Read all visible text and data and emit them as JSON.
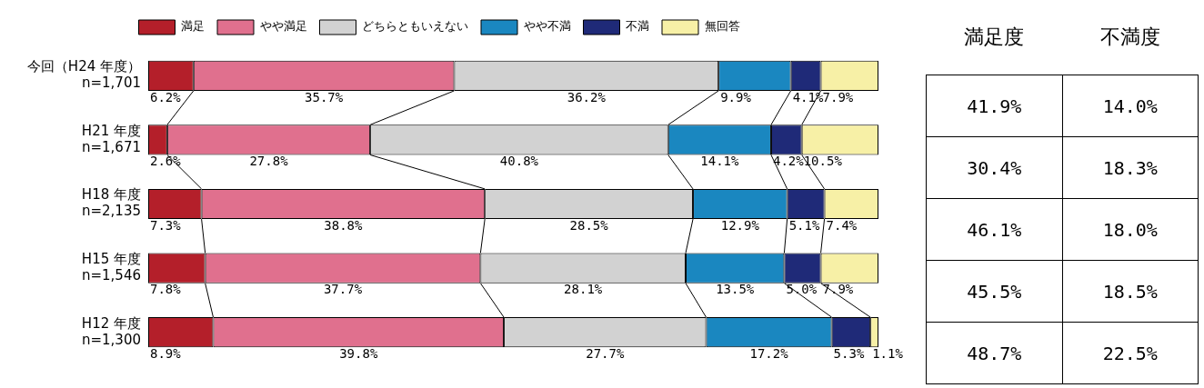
{
  "chart_data": [
    {
      "type": "bar",
      "orientation": "horizontal",
      "stacked": true,
      "legend": "top",
      "tick_labels": "y",
      "categories": [
        "今回（H24 年度）\nn=1,701",
        "H21 年度\nn=1,671",
        "H18 年度\nn=2,135",
        "H15 年度\nn=1,546",
        "H12 年度\nn=1,300"
      ],
      "xlim": [
        0,
        100
      ],
      "series": [
        {
          "name": "満足",
          "color": "#b41f2a",
          "values": [
            6.2,
            2.6,
            7.3,
            7.8,
            8.9
          ],
          "value_labels": [
            "6.2%",
            "2.6%",
            "7.3%",
            "7.8%",
            "8.9%"
          ]
        },
        {
          "name": "やや満足",
          "color": "#e0708e",
          "values": [
            35.7,
            27.8,
            38.8,
            37.7,
            39.8
          ],
          "value_labels": [
            "35.7%",
            "27.8%",
            "38.8%",
            "37.7%",
            "39.8%"
          ]
        },
        {
          "name": "どちらともいえない",
          "color": "#d2d2d2",
          "values": [
            36.2,
            40.8,
            28.5,
            28.1,
            27.7
          ],
          "value_labels": [
            "36.2%",
            "40.8%",
            "28.5%",
            "28.1%",
            "27.7%"
          ]
        },
        {
          "name": "やや不満",
          "color": "#1a87c0",
          "values": [
            9.9,
            14.1,
            12.9,
            13.5,
            17.2
          ],
          "value_labels": [
            "9.9%",
            "14.1%",
            "12.9%",
            "13.5%",
            "17.2%"
          ]
        },
        {
          "name": "不満",
          "color": "#1f2a78",
          "values": [
            4.1,
            4.2,
            5.1,
            5.0,
            5.3
          ],
          "value_labels": [
            "4.1%",
            "4.2%",
            "5.1%",
            "5.0%",
            "5.3%"
          ]
        },
        {
          "name": "無回答",
          "color": "#f7f0a6",
          "values": [
            7.9,
            10.5,
            7.4,
            7.9,
            1.1
          ],
          "value_labels": [
            "7.9%",
            "10.5%",
            "7.4%",
            "7.9%",
            "1.1%"
          ]
        }
      ]
    },
    {
      "type": "other",
      "categories": [
        "満足度",
        "不満度"
      ],
      "cell_labels": [
        [
          "41.9%",
          "14.0%"
        ],
        [
          "30.4%",
          "18.3%"
        ],
        [
          "46.1%",
          "18.0%"
        ],
        [
          "45.5%",
          "18.5%"
        ],
        [
          "48.7%",
          "22.5%"
        ]
      ]
    }
  ]
}
